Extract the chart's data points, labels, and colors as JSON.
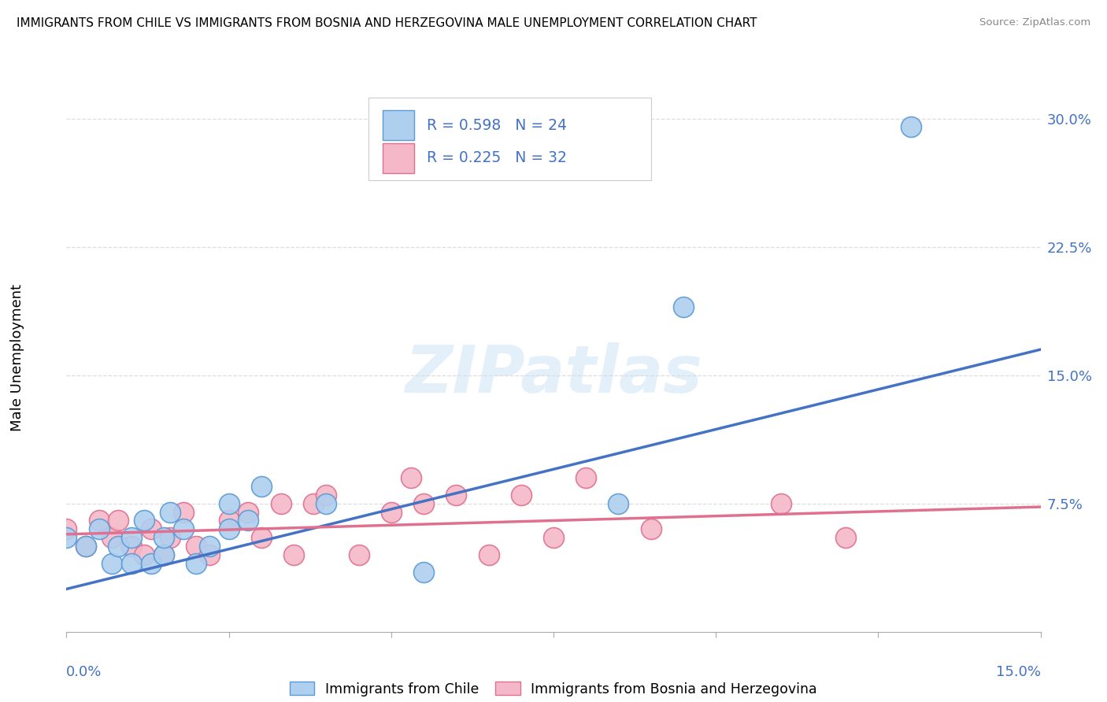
{
  "title": "IMMIGRANTS FROM CHILE VS IMMIGRANTS FROM BOSNIA AND HERZEGOVINA MALE UNEMPLOYMENT CORRELATION CHART",
  "source": "Source: ZipAtlas.com",
  "ylabel": "Male Unemployment",
  "ytick_labels": [
    "7.5%",
    "15.0%",
    "22.5%",
    "30.0%"
  ],
  "ytick_values": [
    0.075,
    0.15,
    0.225,
    0.3
  ],
  "xlim": [
    0.0,
    0.15
  ],
  "ylim": [
    0.0,
    0.32
  ],
  "legend_chile_R": "0.598",
  "legend_chile_N": "24",
  "legend_bosnia_R": "0.225",
  "legend_bosnia_N": "32",
  "chile_color": "#aecfee",
  "chile_edge_color": "#5b9bd5",
  "bosnia_color": "#f4b8c8",
  "bosnia_edge_color": "#e07090",
  "trendline_chile_color": "#4472c4",
  "trendline_bosnia_color": "#e07090",
  "right_tick_color": "#4472c4",
  "watermark_text": "ZIPatlas",
  "chile_scatter_x": [
    0.0,
    0.003,
    0.005,
    0.007,
    0.008,
    0.01,
    0.01,
    0.012,
    0.013,
    0.015,
    0.015,
    0.016,
    0.018,
    0.02,
    0.022,
    0.025,
    0.025,
    0.028,
    0.03,
    0.04,
    0.055,
    0.085,
    0.095,
    0.13
  ],
  "chile_scatter_y": [
    0.055,
    0.05,
    0.06,
    0.04,
    0.05,
    0.04,
    0.055,
    0.065,
    0.04,
    0.045,
    0.055,
    0.07,
    0.06,
    0.04,
    0.05,
    0.06,
    0.075,
    0.065,
    0.085,
    0.075,
    0.035,
    0.075,
    0.19,
    0.295
  ],
  "bosnia_scatter_x": [
    0.0,
    0.003,
    0.005,
    0.007,
    0.008,
    0.01,
    0.012,
    0.013,
    0.015,
    0.016,
    0.018,
    0.02,
    0.022,
    0.025,
    0.028,
    0.03,
    0.033,
    0.035,
    0.038,
    0.04,
    0.045,
    0.05,
    0.053,
    0.055,
    0.06,
    0.065,
    0.07,
    0.075,
    0.08,
    0.09,
    0.11,
    0.12
  ],
  "bosnia_scatter_y": [
    0.06,
    0.05,
    0.065,
    0.055,
    0.065,
    0.05,
    0.045,
    0.06,
    0.045,
    0.055,
    0.07,
    0.05,
    0.045,
    0.065,
    0.07,
    0.055,
    0.075,
    0.045,
    0.075,
    0.08,
    0.045,
    0.07,
    0.09,
    0.075,
    0.08,
    0.045,
    0.08,
    0.055,
    0.09,
    0.06,
    0.075,
    0.055
  ],
  "chile_trend_x": [
    0.0,
    0.15
  ],
  "chile_trend_y": [
    0.025,
    0.165
  ],
  "bosnia_trend_x": [
    0.0,
    0.15
  ],
  "bosnia_trend_y": [
    0.057,
    0.073
  ]
}
